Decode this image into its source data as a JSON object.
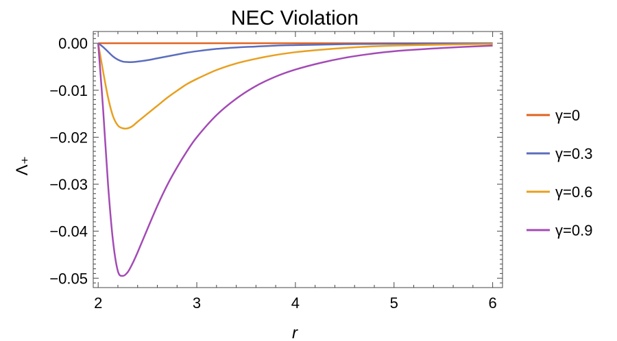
{
  "chart_data": {
    "type": "line",
    "title": "NEC Violation",
    "xlabel": "r",
    "ylabel": "Λ₊",
    "xlim": [
      1.95,
      6.1
    ],
    "ylim": [
      -0.052,
      0.0025
    ],
    "xticks": [
      "2",
      "3",
      "4",
      "5",
      "6"
    ],
    "yticks": [
      "0.00",
      "−0.01",
      "−0.02",
      "−0.03",
      "−0.04",
      "−0.05"
    ],
    "legend_position": "right",
    "grid": false,
    "x": [
      2.0,
      2.05,
      2.1,
      2.15,
      2.2,
      2.25,
      2.3,
      2.35,
      2.4,
      2.5,
      2.6,
      2.7,
      2.8,
      2.9,
      3.0,
      3.2,
      3.4,
      3.6,
      3.8,
      4.0,
      4.25,
      4.5,
      4.75,
      5.0,
      5.5,
      6.0
    ],
    "series": [
      {
        "name": "γ=0",
        "color": "#E0621F",
        "values": [
          0,
          0,
          0,
          0,
          0,
          0,
          0,
          0,
          0,
          0,
          0,
          0,
          0,
          0,
          0,
          0,
          0,
          0,
          0,
          0,
          0,
          0,
          0,
          0,
          0,
          0
        ]
      },
      {
        "name": "γ=0.3",
        "color": "#5B6DBE",
        "values": [
          0.0,
          -0.0008,
          -0.0018,
          -0.0028,
          -0.0035,
          -0.0039,
          -0.004,
          -0.004,
          -0.0039,
          -0.0036,
          -0.0032,
          -0.0028,
          -0.0024,
          -0.002,
          -0.0017,
          -0.0012,
          -0.0009,
          -0.0007,
          -0.0005,
          -0.0004,
          -0.0003,
          -0.0002,
          -0.00015,
          -0.0001,
          -6e-05,
          -3e-05
        ]
      },
      {
        "name": "γ=0.6",
        "color": "#E89F1E",
        "values": [
          0.0,
          -0.006,
          -0.0115,
          -0.0155,
          -0.0175,
          -0.0181,
          -0.0181,
          -0.0176,
          -0.0167,
          -0.015,
          -0.0133,
          -0.0116,
          -0.0101,
          -0.0087,
          -0.0076,
          -0.0057,
          -0.0043,
          -0.0033,
          -0.0025,
          -0.0019,
          -0.0014,
          -0.001,
          -0.0007,
          -0.0005,
          -0.0003,
          -0.00015
        ]
      },
      {
        "name": "γ=0.9",
        "color": "#A34AB5",
        "values": [
          0.0,
          -0.014,
          -0.03,
          -0.042,
          -0.0485,
          -0.0495,
          -0.0487,
          -0.0468,
          -0.0445,
          -0.0395,
          -0.0346,
          -0.0302,
          -0.0264,
          -0.023,
          -0.02,
          -0.0153,
          -0.0118,
          -0.0091,
          -0.0071,
          -0.0056,
          -0.0042,
          -0.0031,
          -0.0023,
          -0.0017,
          -0.001,
          -0.0005
        ]
      }
    ]
  }
}
